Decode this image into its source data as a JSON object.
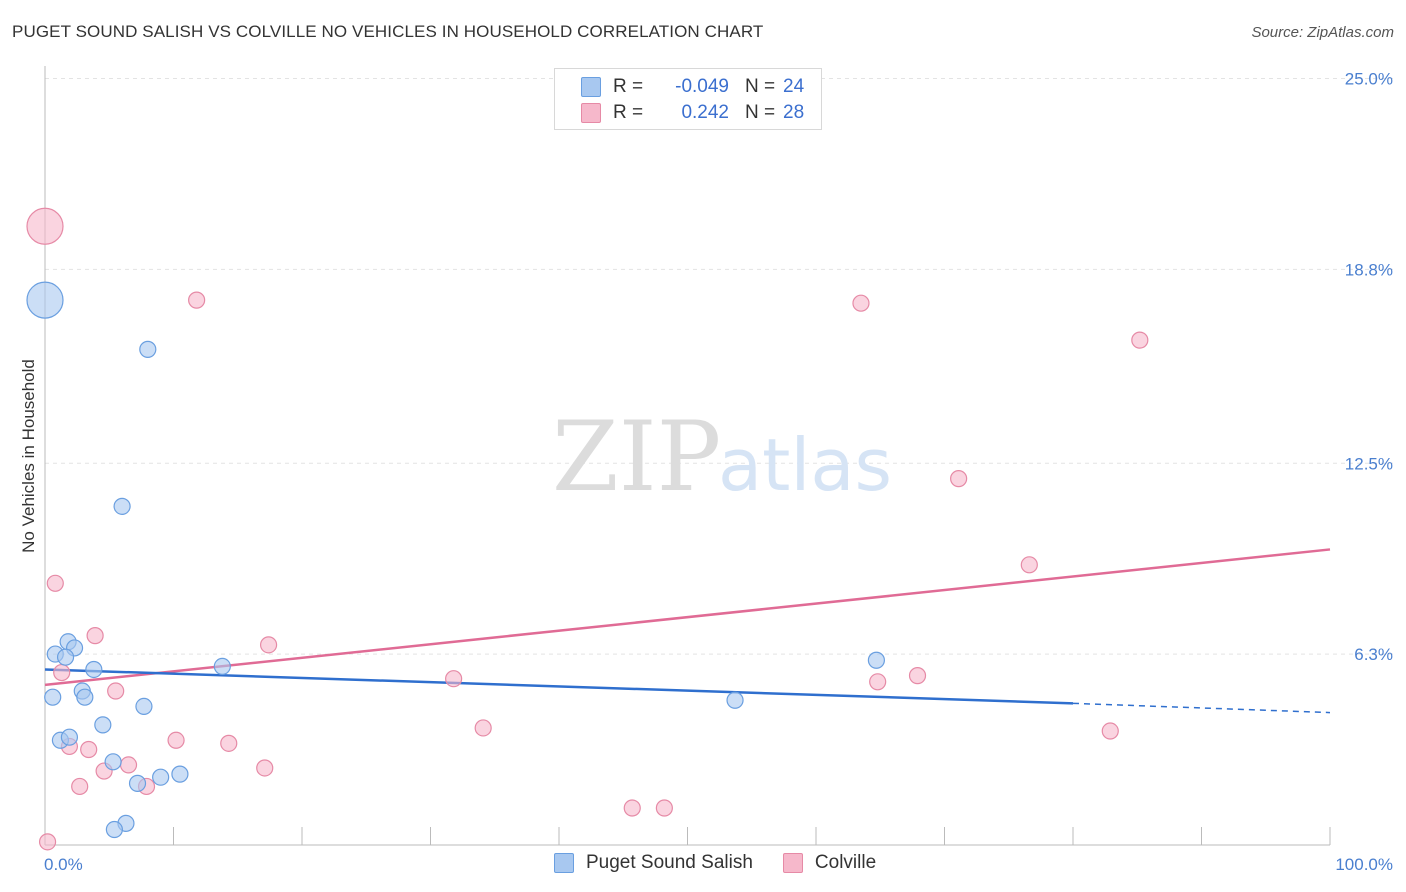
{
  "title": "PUGET SOUND SALISH VS COLVILLE NO VEHICLES IN HOUSEHOLD CORRELATION CHART",
  "source": "Source: ZipAtlas.com",
  "watermark": {
    "zip": "ZIP",
    "atlas": "atlas"
  },
  "legend": {
    "r_label": "R =",
    "n_label": "N =",
    "rows": [
      {
        "r": "-0.049",
        "n": "24"
      },
      {
        "r": "0.242",
        "n": "28"
      }
    ]
  },
  "colors": {
    "blue_fill": "#a8c8f0",
    "blue_stroke": "#6a9fe0",
    "blue_line": "#2f6fce",
    "pink_fill": "#f6b8cb",
    "pink_stroke": "#e68aa6",
    "pink_line": "#e06b95",
    "grid": "#e3e3e3",
    "tick_text": "#4a7fcf"
  },
  "chart_data": {
    "type": "scatter",
    "title": "PUGET SOUND SALISH VS COLVILLE NO VEHICLES IN HOUSEHOLD CORRELATION CHART",
    "xlabel": "",
    "ylabel": "No Vehicles in Household",
    "xlim": [
      0,
      100
    ],
    "ylim": [
      0,
      26
    ],
    "x_tick_labels": [
      "0.0%",
      "100.0%"
    ],
    "y_ticks": [
      6.3,
      12.5,
      18.8,
      25.0
    ],
    "y_tick_labels": [
      "6.3%",
      "12.5%",
      "18.8%",
      "25.0%"
    ],
    "series": [
      {
        "name": "Puget Sound Salish",
        "color": "#a8c8f0",
        "r": -0.049,
        "n": 24,
        "points": [
          {
            "x": 0.0,
            "y": 17.8,
            "big": true
          },
          {
            "x": 8.0,
            "y": 16.2
          },
          {
            "x": 6.0,
            "y": 11.1
          },
          {
            "x": 0.8,
            "y": 6.3
          },
          {
            "x": 1.8,
            "y": 6.7
          },
          {
            "x": 2.3,
            "y": 6.5
          },
          {
            "x": 1.6,
            "y": 6.2
          },
          {
            "x": 3.8,
            "y": 5.8
          },
          {
            "x": 13.8,
            "y": 5.9
          },
          {
            "x": 0.6,
            "y": 4.9
          },
          {
            "x": 2.9,
            "y": 5.1
          },
          {
            "x": 3.1,
            "y": 4.9
          },
          {
            "x": 7.7,
            "y": 4.6
          },
          {
            "x": 1.2,
            "y": 3.5
          },
          {
            "x": 1.9,
            "y": 3.6
          },
          {
            "x": 4.5,
            "y": 4.0
          },
          {
            "x": 5.3,
            "y": 2.8
          },
          {
            "x": 7.2,
            "y": 2.1
          },
          {
            "x": 9.0,
            "y": 2.3
          },
          {
            "x": 10.5,
            "y": 2.4
          },
          {
            "x": 6.3,
            "y": 0.8
          },
          {
            "x": 5.4,
            "y": 0.6
          },
          {
            "x": 53.7,
            "y": 4.8
          },
          {
            "x": 64.7,
            "y": 6.1
          }
        ],
        "trend": {
          "x0": 0,
          "y0": 5.8,
          "x1": 80,
          "y1": 4.7,
          "dash_x1": 100,
          "dash_y1": 4.4
        }
      },
      {
        "name": "Colville",
        "color": "#f6b8cb",
        "r": 0.242,
        "n": 28,
        "points": [
          {
            "x": 0.0,
            "y": 20.2,
            "big": true
          },
          {
            "x": 11.8,
            "y": 17.8
          },
          {
            "x": 63.5,
            "y": 17.7
          },
          {
            "x": 85.2,
            "y": 16.5
          },
          {
            "x": 71.1,
            "y": 12.0
          },
          {
            "x": 76.6,
            "y": 9.2
          },
          {
            "x": 0.8,
            "y": 8.6
          },
          {
            "x": 3.9,
            "y": 6.9
          },
          {
            "x": 17.4,
            "y": 6.6
          },
          {
            "x": 1.3,
            "y": 5.7
          },
          {
            "x": 5.5,
            "y": 5.1
          },
          {
            "x": 31.8,
            "y": 5.5
          },
          {
            "x": 64.8,
            "y": 5.4
          },
          {
            "x": 67.9,
            "y": 5.6
          },
          {
            "x": 34.1,
            "y": 3.9
          },
          {
            "x": 82.9,
            "y": 3.8
          },
          {
            "x": 10.2,
            "y": 3.5
          },
          {
            "x": 14.3,
            "y": 3.4
          },
          {
            "x": 1.9,
            "y": 3.3
          },
          {
            "x": 3.4,
            "y": 3.2
          },
          {
            "x": 6.5,
            "y": 2.7
          },
          {
            "x": 4.6,
            "y": 2.5
          },
          {
            "x": 17.1,
            "y": 2.6
          },
          {
            "x": 2.7,
            "y": 2.0
          },
          {
            "x": 7.9,
            "y": 2.0
          },
          {
            "x": 45.7,
            "y": 1.3
          },
          {
            "x": 48.2,
            "y": 1.3
          },
          {
            "x": 0.2,
            "y": 0.2
          }
        ],
        "trend": {
          "x0": 0,
          "y0": 5.3,
          "x1": 100,
          "y1": 9.7
        }
      }
    ]
  },
  "bottom_legend": [
    {
      "label": "Puget Sound Salish"
    },
    {
      "label": "Colville"
    }
  ]
}
